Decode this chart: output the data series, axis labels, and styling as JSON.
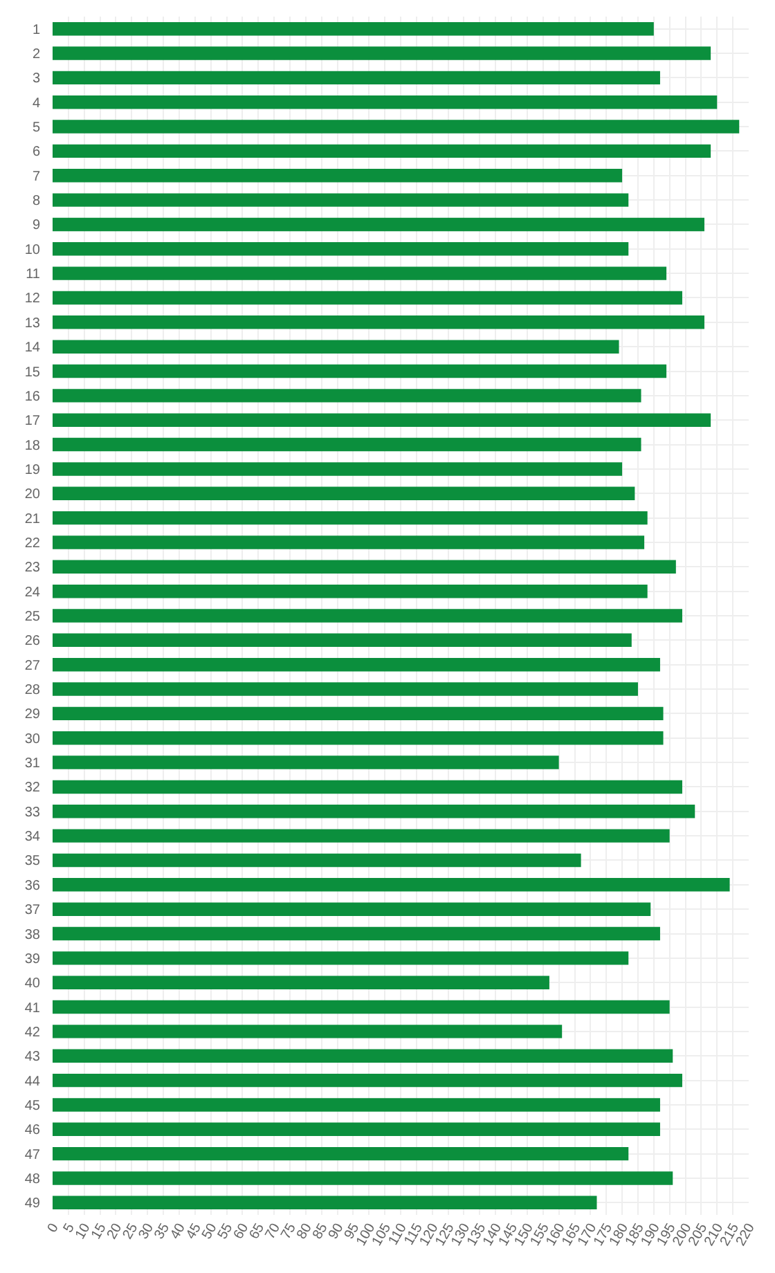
{
  "chart_data": {
    "type": "bar",
    "orientation": "horizontal",
    "categories": [
      "1",
      "2",
      "3",
      "4",
      "5",
      "6",
      "7",
      "8",
      "9",
      "10",
      "11",
      "12",
      "13",
      "14",
      "15",
      "16",
      "17",
      "18",
      "19",
      "20",
      "21",
      "22",
      "23",
      "24",
      "25",
      "26",
      "27",
      "28",
      "29",
      "30",
      "31",
      "32",
      "33",
      "34",
      "35",
      "36",
      "37",
      "38",
      "39",
      "40",
      "41",
      "42",
      "43",
      "44",
      "45",
      "46",
      "47",
      "48",
      "49"
    ],
    "values": [
      190,
      208,
      192,
      210,
      217,
      208,
      180,
      182,
      206,
      182,
      194,
      199,
      206,
      179,
      194,
      186,
      208,
      186,
      180,
      184,
      188,
      187,
      197,
      188,
      199,
      183,
      192,
      185,
      193,
      193,
      160,
      199,
      203,
      195,
      167,
      214,
      189,
      192,
      182,
      157,
      195,
      161,
      196,
      199,
      192,
      192,
      182,
      196,
      172
    ],
    "color": "#0b8f3d",
    "xlim": [
      0,
      220
    ],
    "xticks": [
      0,
      5,
      10,
      15,
      20,
      25,
      30,
      35,
      40,
      45,
      50,
      55,
      60,
      65,
      70,
      75,
      80,
      85,
      90,
      95,
      100,
      105,
      110,
      115,
      120,
      125,
      130,
      135,
      140,
      145,
      150,
      155,
      160,
      165,
      170,
      175,
      180,
      185,
      190,
      195,
      200,
      205,
      210,
      215,
      220
    ],
    "grid": true
  }
}
